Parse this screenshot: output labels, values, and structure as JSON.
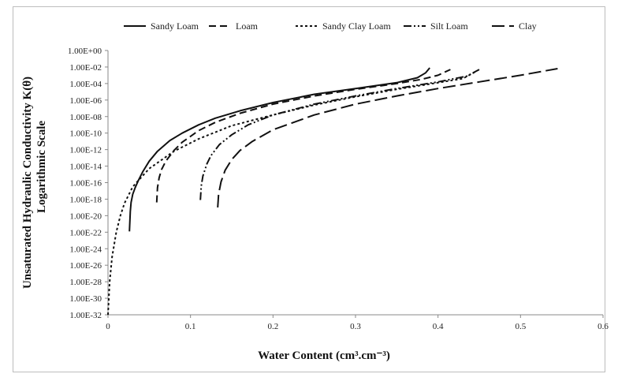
{
  "chart_data": {
    "type": "line",
    "title": "",
    "xlabel": "Water Content (cm³.cm⁻³)",
    "ylabel_line1": "Unsaturated Hydraulic Conductivity  K(θ)",
    "ylabel_line2": "Logarithmic Scale",
    "x_ticks": [
      "0",
      "0.1",
      "0.2",
      "0.3",
      "0.4",
      "0.5",
      "0.6"
    ],
    "xlim": [
      0,
      0.6
    ],
    "y_ticks": [
      "1.00E+00",
      "1.00E-02",
      "1.00E-04",
      "1.00E-06",
      "1.00E-08",
      "1.00E-10",
      "1.00E-12",
      "1.00E-14",
      "1.00E-16",
      "1.00E-18",
      "1.00E-20",
      "1.00E-22",
      "1.00E-24",
      "1.00E-26",
      "1.00E-28",
      "1.00E-30",
      "1.00E-32"
    ],
    "ylim_log10": [
      -32,
      0
    ],
    "y_scale": "log",
    "grid": false,
    "legend_position": "top",
    "series": [
      {
        "name": "Sandy Loam",
        "dash": "solid",
        "points": [
          [
            0.026,
            -21.9
          ],
          [
            0.027,
            -19.5
          ],
          [
            0.028,
            -18.4
          ],
          [
            0.03,
            -17.4
          ],
          [
            0.033,
            -16.6
          ],
          [
            0.037,
            -15.7
          ],
          [
            0.042,
            -14.7
          ],
          [
            0.05,
            -13.4
          ],
          [
            0.06,
            -12.2
          ],
          [
            0.075,
            -10.9
          ],
          [
            0.09,
            -10.0
          ],
          [
            0.11,
            -9.0
          ],
          [
            0.13,
            -8.2
          ],
          [
            0.16,
            -7.3
          ],
          [
            0.2,
            -6.3
          ],
          [
            0.25,
            -5.3
          ],
          [
            0.3,
            -4.6
          ],
          [
            0.35,
            -3.9
          ],
          [
            0.375,
            -3.3
          ],
          [
            0.385,
            -2.7
          ],
          [
            0.39,
            -2.1
          ]
        ]
      },
      {
        "name": "Loam",
        "dash": "long-dash",
        "points": [
          [
            0.059,
            -18.4
          ],
          [
            0.06,
            -16.6
          ],
          [
            0.062,
            -15.4
          ],
          [
            0.065,
            -14.4
          ],
          [
            0.07,
            -13.4
          ],
          [
            0.08,
            -12.1
          ],
          [
            0.09,
            -11.1
          ],
          [
            0.11,
            -9.7
          ],
          [
            0.13,
            -8.7
          ],
          [
            0.16,
            -7.6
          ],
          [
            0.2,
            -6.5
          ],
          [
            0.25,
            -5.5
          ],
          [
            0.3,
            -4.7
          ],
          [
            0.35,
            -4.0
          ],
          [
            0.38,
            -3.5
          ],
          [
            0.4,
            -3.0
          ],
          [
            0.415,
            -2.3
          ]
        ]
      },
      {
        "name": "Sandy Clay Loam",
        "dash": "short-dash",
        "points": [
          [
            0.0,
            -32.0
          ],
          [
            0.002,
            -28.0
          ],
          [
            0.005,
            -25.0
          ],
          [
            0.01,
            -22.0
          ],
          [
            0.015,
            -20.0
          ],
          [
            0.02,
            -18.5
          ],
          [
            0.03,
            -16.5
          ],
          [
            0.05,
            -14.3
          ],
          [
            0.08,
            -12.2
          ],
          [
            0.11,
            -10.7
          ],
          [
            0.15,
            -9.1
          ],
          [
            0.2,
            -7.8
          ],
          [
            0.25,
            -6.6
          ],
          [
            0.3,
            -5.6
          ],
          [
            0.35,
            -4.7
          ],
          [
            0.4,
            -3.9
          ],
          [
            0.43,
            -3.4
          ],
          [
            0.445,
            -2.6
          ]
        ]
      },
      {
        "name": "Silt Loam",
        "dash": "dash-dot-dot",
        "points": [
          [
            0.112,
            -18.1
          ],
          [
            0.113,
            -16.4
          ],
          [
            0.115,
            -15.2
          ],
          [
            0.12,
            -13.7
          ],
          [
            0.125,
            -12.7
          ],
          [
            0.135,
            -11.4
          ],
          [
            0.15,
            -10.2
          ],
          [
            0.17,
            -9.0
          ],
          [
            0.2,
            -7.8
          ],
          [
            0.25,
            -6.5
          ],
          [
            0.3,
            -5.5
          ],
          [
            0.35,
            -4.6
          ],
          [
            0.4,
            -3.8
          ],
          [
            0.435,
            -3.1
          ],
          [
            0.45,
            -2.3
          ]
        ]
      },
      {
        "name": "Clay",
        "dash": "long-long-dash",
        "points": [
          [
            0.133,
            -19.0
          ],
          [
            0.134,
            -17.4
          ],
          [
            0.137,
            -15.9
          ],
          [
            0.142,
            -14.5
          ],
          [
            0.15,
            -13.2
          ],
          [
            0.16,
            -12.1
          ],
          [
            0.175,
            -11.0
          ],
          [
            0.2,
            -9.6
          ],
          [
            0.25,
            -7.8
          ],
          [
            0.3,
            -6.5
          ],
          [
            0.35,
            -5.5
          ],
          [
            0.4,
            -4.6
          ],
          [
            0.45,
            -3.8
          ],
          [
            0.5,
            -3.0
          ],
          [
            0.545,
            -2.2
          ]
        ]
      }
    ]
  }
}
